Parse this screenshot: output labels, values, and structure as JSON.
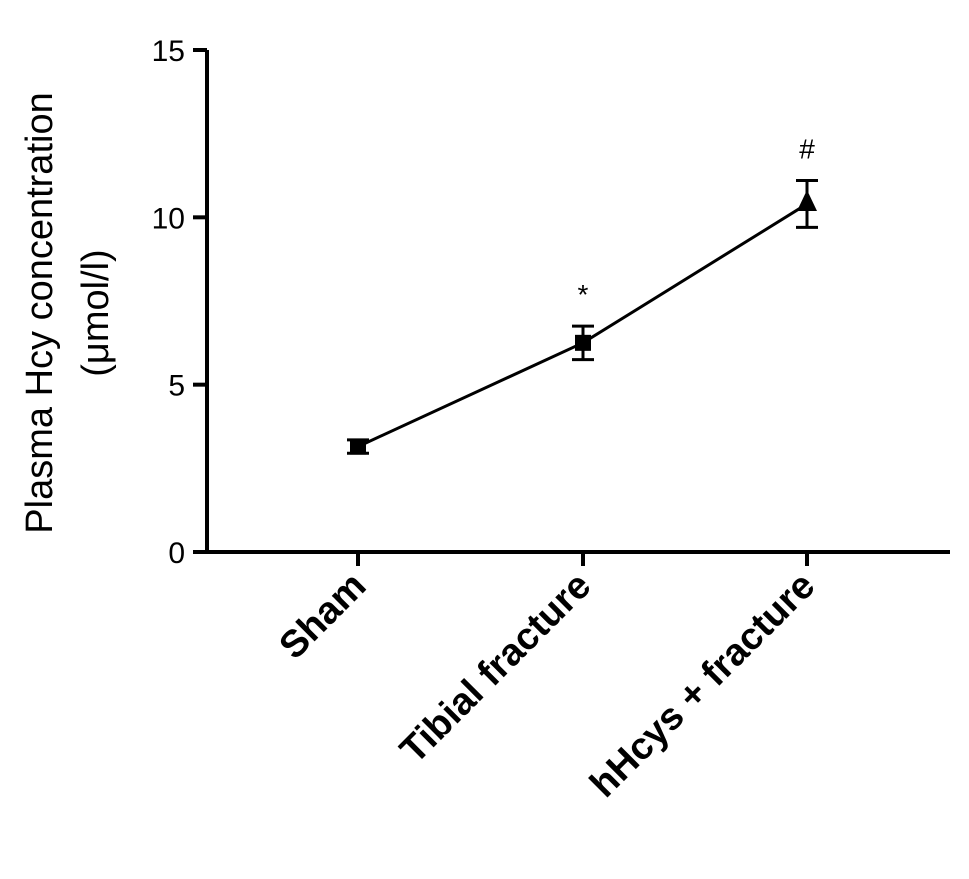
{
  "chart_data": {
    "type": "line",
    "title": "",
    "xlabel": "",
    "ylabel_line1": "Plasma Hcy concentration",
    "ylabel_line2": "(μmol/l)",
    "categories": [
      "Sham",
      "Tibial fracture",
      "hHcys + fracture"
    ],
    "ylim": [
      0,
      15
    ],
    "yticks": [
      0,
      5,
      10,
      15
    ],
    "grid": false,
    "legend": "none",
    "series": [
      {
        "values": [
          3.15,
          6.25,
          10.4
        ],
        "error": [
          0.2,
          0.5,
          0.7
        ],
        "markers": [
          "square",
          "square",
          "triangle"
        ],
        "annotations": [
          "",
          "*",
          "#"
        ],
        "color": "#000000"
      }
    ]
  }
}
